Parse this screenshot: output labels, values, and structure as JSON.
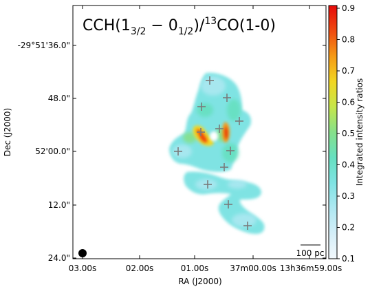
{
  "chart_data": {
    "type": "heatmap",
    "title_main": "CCH(1",
    "title_sub1": "3/2",
    "title_mid": " − 0",
    "title_sub2": "1/2",
    "title_slash": ")/",
    "title_sup": "13",
    "title_end": "CO(1-0)",
    "xlabel": "RA (J2000)",
    "ylabel": "Dec (J2000)",
    "xticks": [
      "03.00s",
      "02.00s",
      "01.00s",
      "37m00.00s",
      "13h36m59.00s"
    ],
    "yticks": [
      "-29°51'36.0\"",
      "48.0\"",
      "52'00.0\"",
      "12.0\"",
      "24.0\""
    ],
    "colorbar": {
      "label": "Integrated intensity ratios",
      "min": 0.1,
      "max": 0.9,
      "ticks": [
        "0.1",
        "0.2",
        "0.3",
        "0.4",
        "0.5",
        "0.6",
        "0.7",
        "0.8",
        "0.9"
      ],
      "colors": [
        "#f2f8fc",
        "#d4eef8",
        "#aee8f2",
        "#7fe3e3",
        "#66e0c0",
        "#86e08a",
        "#c6e64a",
        "#f2d623",
        "#f59a16",
        "#ef4a10",
        "#e60a0a"
      ]
    },
    "scalebar_label": "100 pc",
    "markers_count": 14
  }
}
